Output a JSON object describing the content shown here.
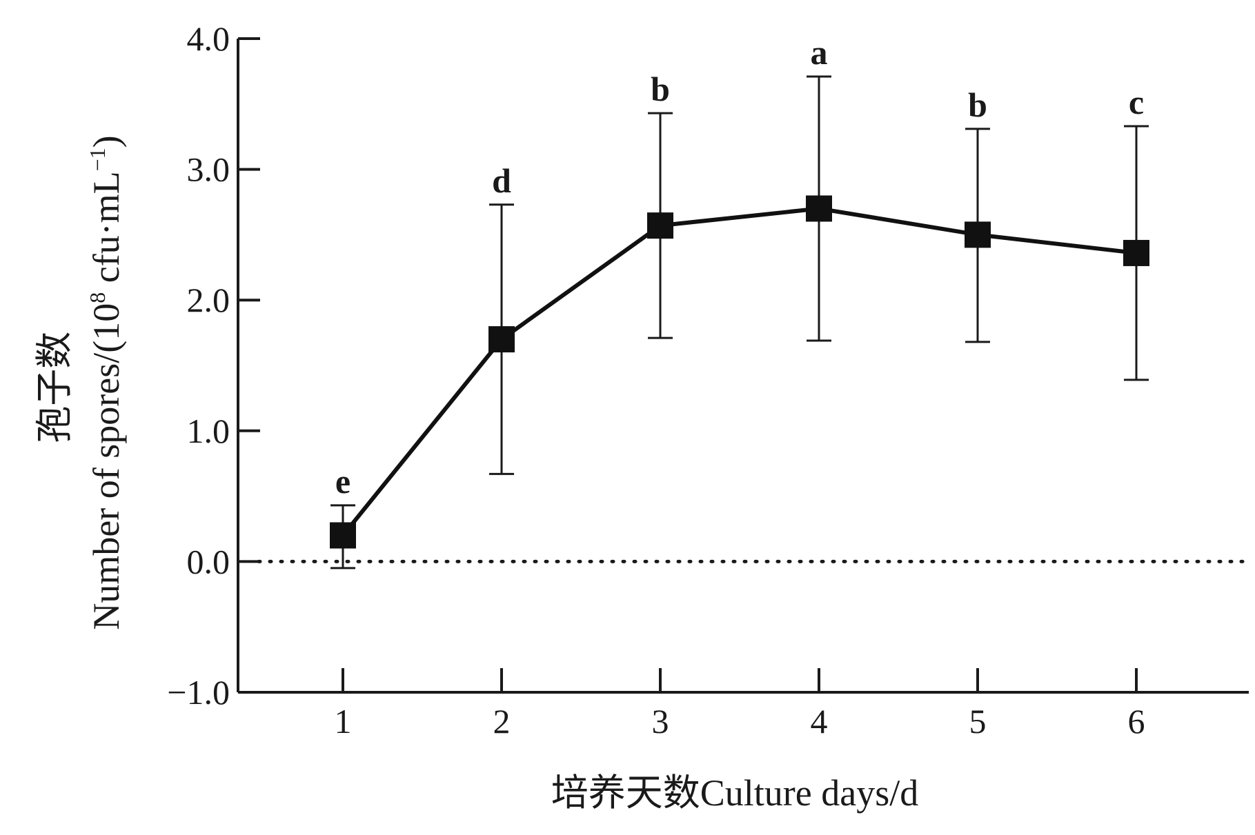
{
  "chart_data": {
    "type": "line",
    "xlabel": "培养天数Culture days/d",
    "ylabel": "孢子数 Number of spores/(10⁸ cfu·mL⁻¹)",
    "ylabel_parts": {
      "cn": "孢子数",
      "en_prefix": "Number of spores/(10",
      "sup1": "8",
      "en_mid": " cfu·mL",
      "sup2": "−1",
      "en_suffix": ")"
    },
    "x": [
      1,
      2,
      3,
      4,
      5,
      6
    ],
    "x_tick_labels": [
      "1",
      "2",
      "3",
      "4",
      "5",
      "6"
    ],
    "ylim": [
      -1.0,
      4.0
    ],
    "y_ticks": [
      -1.0,
      0.0,
      1.0,
      2.0,
      3.0,
      4.0
    ],
    "y_tick_labels": [
      "−1.0",
      "0.0",
      "1.0",
      "2.0",
      "3.0",
      "4.0"
    ],
    "reference_line_y": 0.0,
    "series": [
      {
        "values": [
          0.2,
          1.7,
          2.57,
          2.7,
          2.5,
          2.36
        ],
        "error_upper": [
          0.43,
          2.73,
          3.43,
          3.71,
          3.31,
          3.33
        ],
        "error_lower": [
          -0.05,
          0.67,
          1.71,
          1.69,
          1.68,
          1.39
        ],
        "significance": [
          "e",
          "d",
          "b",
          "a",
          "b",
          "c"
        ],
        "color": "#111111",
        "marker": "square"
      }
    ],
    "grid": false,
    "legend": "none"
  }
}
